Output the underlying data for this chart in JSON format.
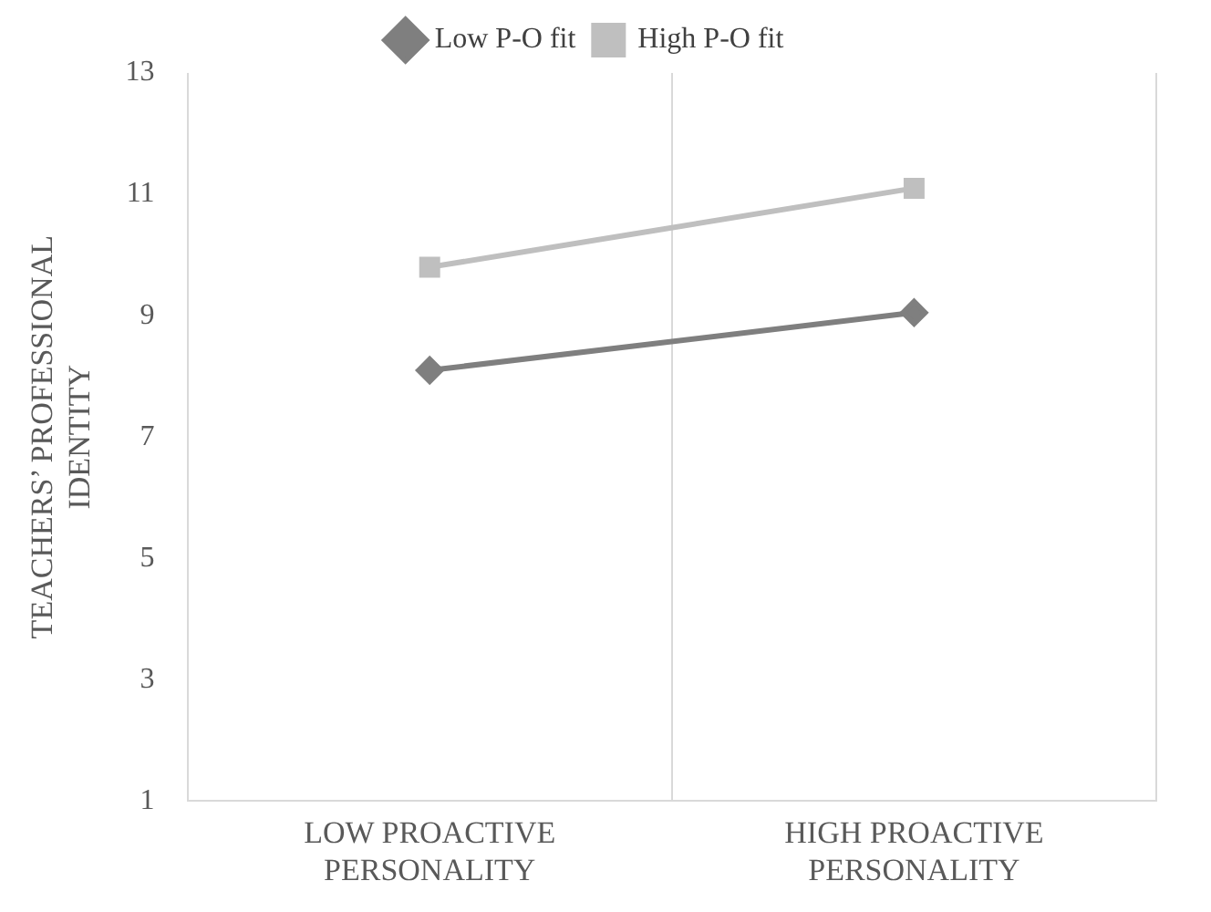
{
  "chart_data": {
    "type": "line",
    "ylabel": "TEACHERS’ PROFESSIONAL\nIDENTITY",
    "categories": [
      "LOW PROACTIVE\nPERSONALITY",
      "HIGH PROACTIVE\nPERSONALITY"
    ],
    "series": [
      {
        "name": "Low P-O fit",
        "color": "#7f7f7f",
        "marker": "diamond",
        "values": [
          8.1,
          9.05
        ]
      },
      {
        "name": "High P-O fit",
        "color": "#bfbfbf",
        "marker": "square",
        "values": [
          9.8,
          11.1
        ]
      }
    ],
    "ylim": [
      1,
      13
    ],
    "yticks": [
      1,
      3,
      5,
      7,
      9,
      11,
      13
    ],
    "grid": "x",
    "legend": "top",
    "line_style": "solid"
  }
}
